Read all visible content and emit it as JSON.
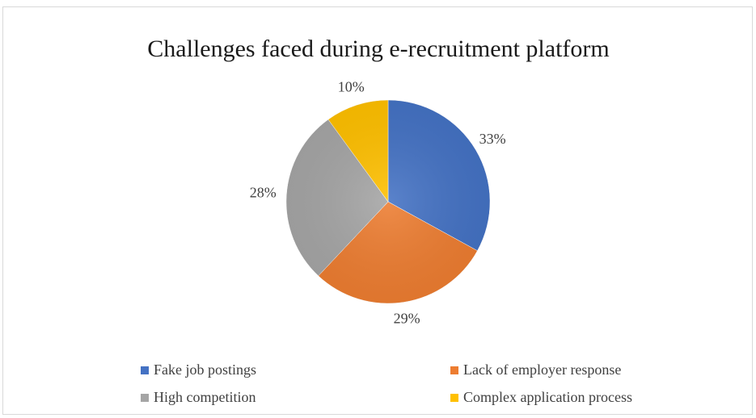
{
  "chart_data": {
    "type": "pie",
    "title": "Challenges faced during e-recruitment platform",
    "categories": [
      "Fake job postings",
      "Lack of employer response",
      "High competition",
      "Complex application process"
    ],
    "values": [
      33,
      29,
      28,
      10
    ],
    "labels": [
      "33%",
      "29%",
      "28%",
      "10%"
    ],
    "colors": [
      "#4472c4",
      "#ed7d31",
      "#a5a5a5",
      "#ffc000"
    ],
    "legend_position": "bottom",
    "start_angle": "12 o'clock, clockwise"
  }
}
